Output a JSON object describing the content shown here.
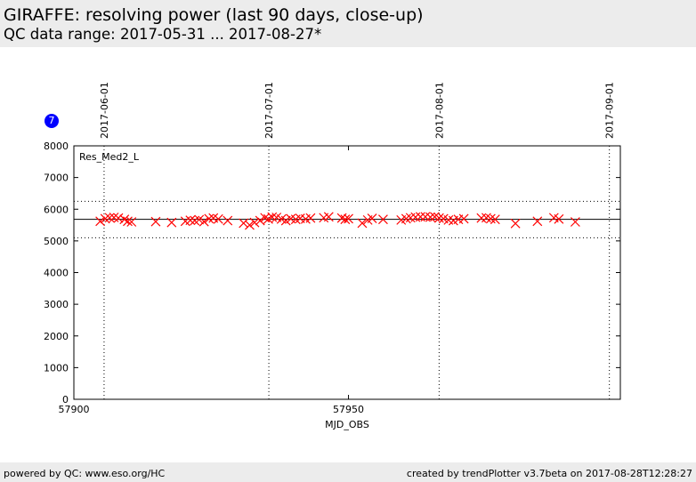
{
  "header": {
    "title": "GIRAFFE: resolving power (last 90 days, close-up)",
    "subtitle": "QC data range: 2017-05-31 ... 2017-08-27*"
  },
  "badge": {
    "value": "7",
    "color": "#0000ff"
  },
  "footer": {
    "left": "powered by QC: www.eso.org/HC",
    "right": "created by trendPlotter v3.7beta on 2017-08-28T12:28:27"
  },
  "chart_data": {
    "type": "scatter",
    "title": "",
    "legend_label": "Res_Med2_L",
    "xlabel": "MJD_OBS",
    "ylabel": "",
    "xlim": [
      57900,
      57999.5
    ],
    "ylim": [
      0,
      8000
    ],
    "x_ticks": [
      57900,
      57950
    ],
    "x_tick_labels": [
      "57900",
      "57950"
    ],
    "y_ticks": [
      0,
      1000,
      2000,
      3000,
      4000,
      5000,
      6000,
      7000,
      8000
    ],
    "y_tick_labels": [
      "0",
      "1000",
      "2000",
      "3000",
      "4000",
      "5000",
      "6000",
      "7000",
      "8000"
    ],
    "month_lines": [
      {
        "mjd": 57905.5,
        "label": "2017-06-01"
      },
      {
        "mjd": 57935.5,
        "label": "2017-07-01"
      },
      {
        "mjd": 57966.5,
        "label": "2017-08-01"
      },
      {
        "mjd": 57997.5,
        "label": "2017-09-01"
      }
    ],
    "reference": {
      "mean": 5680,
      "upper": 6250,
      "lower": 5100
    },
    "marker_color": "#ff0000",
    "series": [
      {
        "points": [
          [
            57904.8,
            5620
          ],
          [
            57905.7,
            5700
          ],
          [
            57906.5,
            5730
          ],
          [
            57907.3,
            5740
          ],
          [
            57908.1,
            5720
          ],
          [
            57909.2,
            5680
          ],
          [
            57909.8,
            5620
          ],
          [
            57910.5,
            5600
          ],
          [
            57914.9,
            5610
          ],
          [
            57917.8,
            5580
          ],
          [
            57920.3,
            5620
          ],
          [
            57921.2,
            5650
          ],
          [
            57922.0,
            5640
          ],
          [
            57922.8,
            5670
          ],
          [
            57923.7,
            5610
          ],
          [
            57924.6,
            5700
          ],
          [
            57925.4,
            5720
          ],
          [
            57926.3,
            5690
          ],
          [
            57928.0,
            5640
          ],
          [
            57930.9,
            5560
          ],
          [
            57932.0,
            5500
          ],
          [
            57932.9,
            5580
          ],
          [
            57933.9,
            5640
          ],
          [
            57934.8,
            5730
          ],
          [
            57935.4,
            5690
          ],
          [
            57936.1,
            5750
          ],
          [
            57936.9,
            5740
          ],
          [
            57937.8,
            5690
          ],
          [
            57938.6,
            5640
          ],
          [
            57939.5,
            5700
          ],
          [
            57940.4,
            5680
          ],
          [
            57941.2,
            5710
          ],
          [
            57942.2,
            5690
          ],
          [
            57943.1,
            5720
          ],
          [
            57945.5,
            5730
          ],
          [
            57946.4,
            5760
          ],
          [
            57948.8,
            5720
          ],
          [
            57949.4,
            5680
          ],
          [
            57950.0,
            5700
          ],
          [
            57952.5,
            5560
          ],
          [
            57953.5,
            5660
          ],
          [
            57954.3,
            5710
          ],
          [
            57956.3,
            5680
          ],
          [
            57959.6,
            5660
          ],
          [
            57960.5,
            5700
          ],
          [
            57961.3,
            5730
          ],
          [
            57962.2,
            5750
          ],
          [
            57963.1,
            5760
          ],
          [
            57964.0,
            5760
          ],
          [
            57964.9,
            5750
          ],
          [
            57965.7,
            5760
          ],
          [
            57966.5,
            5720
          ],
          [
            57967.3,
            5700
          ],
          [
            57968.2,
            5660
          ],
          [
            57969.1,
            5640
          ],
          [
            57970.0,
            5680
          ],
          [
            57971.0,
            5700
          ],
          [
            57974.2,
            5720
          ],
          [
            57975.1,
            5730
          ],
          [
            57975.9,
            5700
          ],
          [
            57976.7,
            5680
          ],
          [
            57980.4,
            5550
          ],
          [
            57984.4,
            5620
          ],
          [
            57987.4,
            5730
          ],
          [
            57988.3,
            5690
          ],
          [
            57991.3,
            5600
          ]
        ]
      }
    ]
  }
}
